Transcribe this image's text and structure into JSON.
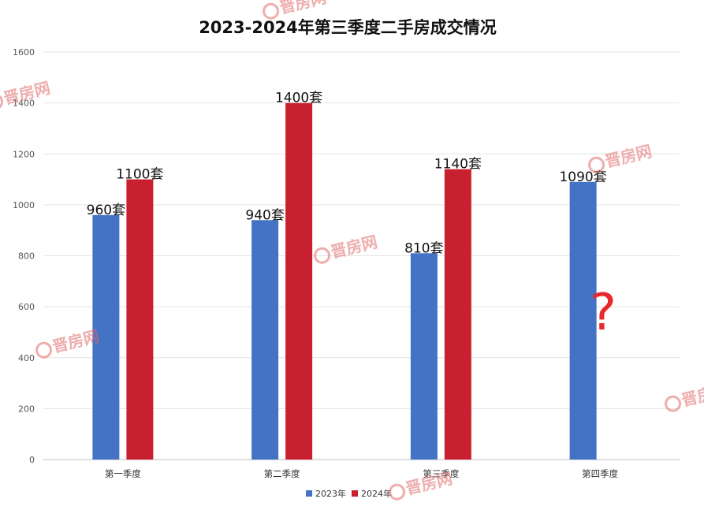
{
  "chart_data": {
    "type": "bar",
    "title": "2023-2024年第三季度二手房成交情况",
    "categories": [
      "第一季度",
      "第二季度",
      "第三季度",
      "第四季度"
    ],
    "series": [
      {
        "name": "2023年",
        "color": "#4472c4",
        "values": [
          960,
          940,
          810,
          1090
        ]
      },
      {
        "name": "2024年",
        "color": "#c9202f",
        "values": [
          1100,
          1400,
          1140,
          null
        ]
      }
    ],
    "data_labels": [
      [
        "960套",
        "940套",
        "810套",
        "1090套"
      ],
      [
        "1100套",
        "1400套",
        "1140套",
        null
      ]
    ],
    "ylim": [
      0,
      1600
    ],
    "yticks": [
      0,
      200,
      400,
      600,
      800,
      1000,
      1200,
      1400,
      1600
    ],
    "grid": true,
    "legend": "bottom",
    "annotation": {
      "text": "?",
      "color": "#e8282b"
    }
  },
  "watermark": {
    "text": "晋房网",
    "color": "#e06a6a"
  }
}
